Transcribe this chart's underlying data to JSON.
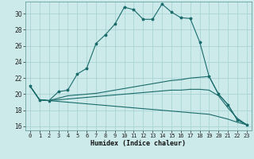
{
  "title": "",
  "xlabel": "Humidex (Indice chaleur)",
  "ylabel": "",
  "background_color": "#cceaea",
  "grid_color": "#aad4d4",
  "line_color": "#1a6b6b",
  "xlim": [
    -0.5,
    23.5
  ],
  "ylim": [
    15.5,
    31.5
  ],
  "xticks": [
    0,
    1,
    2,
    3,
    4,
    5,
    6,
    7,
    8,
    9,
    10,
    11,
    12,
    13,
    14,
    15,
    16,
    17,
    18,
    19,
    20,
    21,
    22,
    23
  ],
  "yticks": [
    16,
    18,
    20,
    22,
    24,
    26,
    28,
    30
  ],
  "line1_x": [
    0,
    1,
    2,
    3,
    4,
    5,
    6,
    7,
    8,
    9,
    10,
    11,
    12,
    13,
    14,
    15,
    16,
    17,
    18,
    19,
    20,
    21,
    22,
    23
  ],
  "line1_y": [
    21.0,
    19.3,
    19.2,
    20.3,
    20.5,
    22.5,
    23.2,
    26.3,
    27.4,
    28.7,
    30.8,
    30.5,
    29.3,
    29.3,
    31.2,
    30.2,
    29.5,
    29.4,
    26.5,
    22.2,
    20.0,
    18.7,
    16.8,
    16.2
  ],
  "line2_x": [
    0,
    1,
    2,
    3,
    4,
    5,
    6,
    7,
    8,
    9,
    10,
    11,
    12,
    13,
    14,
    15,
    16,
    17,
    18,
    19,
    20,
    21,
    22,
    23
  ],
  "line2_y": [
    21.0,
    19.3,
    19.2,
    19.5,
    19.8,
    19.9,
    20.0,
    20.1,
    20.3,
    20.5,
    20.7,
    20.9,
    21.1,
    21.3,
    21.5,
    21.7,
    21.8,
    22.0,
    22.1,
    22.2,
    20.0,
    18.7,
    16.8,
    16.2
  ],
  "line3_x": [
    0,
    1,
    2,
    3,
    4,
    5,
    6,
    7,
    8,
    9,
    10,
    11,
    12,
    13,
    14,
    15,
    16,
    17,
    18,
    19,
    20,
    21,
    22,
    23
  ],
  "line3_y": [
    21.0,
    19.3,
    19.2,
    19.3,
    19.4,
    19.5,
    19.6,
    19.7,
    19.8,
    19.9,
    20.0,
    20.1,
    20.2,
    20.3,
    20.4,
    20.5,
    20.5,
    20.6,
    20.6,
    20.5,
    19.8,
    18.3,
    17.0,
    16.2
  ],
  "line4_x": [
    0,
    1,
    2,
    3,
    4,
    5,
    6,
    7,
    8,
    9,
    10,
    11,
    12,
    13,
    14,
    15,
    16,
    17,
    18,
    19,
    20,
    21,
    22,
    23
  ],
  "line4_y": [
    21.0,
    19.3,
    19.2,
    19.1,
    19.0,
    18.9,
    18.8,
    18.7,
    18.6,
    18.5,
    18.4,
    18.3,
    18.2,
    18.1,
    18.0,
    17.9,
    17.8,
    17.7,
    17.6,
    17.5,
    17.2,
    16.9,
    16.5,
    16.2
  ]
}
